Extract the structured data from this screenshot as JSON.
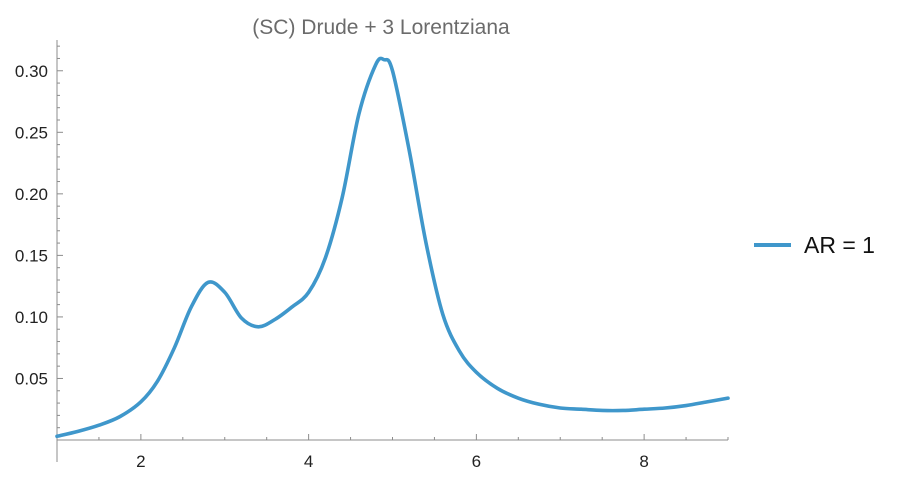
{
  "chart_data": {
    "type": "line",
    "title": "(SC) Drude + 3 Lorentziana",
    "xlabel": "",
    "ylabel": "",
    "xlim": [
      1,
      9
    ],
    "ylim": [
      0,
      0.325
    ],
    "x_ticks": [
      2,
      4,
      6,
      8
    ],
    "x_tick_labels": [
      "2",
      "4",
      "6",
      "8"
    ],
    "y_ticks": [
      0.05,
      0.1,
      0.15,
      0.2,
      0.25,
      0.3
    ],
    "y_tick_labels": [
      "0.05",
      "0.10",
      "0.15",
      "0.20",
      "0.25",
      "0.30"
    ],
    "grid": false,
    "legend": "right",
    "series": [
      {
        "name": "AR = 1",
        "color": "#3f97cb",
        "x": [
          1.0,
          1.25,
          1.5,
          1.75,
          2.0,
          2.2,
          2.4,
          2.6,
          2.8,
          3.0,
          3.2,
          3.4,
          3.6,
          3.8,
          4.0,
          4.2,
          4.4,
          4.6,
          4.8,
          4.9,
          5.0,
          5.2,
          5.4,
          5.6,
          5.8,
          6.0,
          6.25,
          6.5,
          6.75,
          7.0,
          7.25,
          7.5,
          7.75,
          8.0,
          8.25,
          8.5,
          8.75,
          9.0
        ],
        "y": [
          0.003,
          0.007,
          0.012,
          0.019,
          0.031,
          0.048,
          0.075,
          0.108,
          0.128,
          0.12,
          0.099,
          0.092,
          0.098,
          0.108,
          0.12,
          0.148,
          0.197,
          0.265,
          0.305,
          0.309,
          0.3,
          0.235,
          0.16,
          0.102,
          0.072,
          0.055,
          0.042,
          0.034,
          0.029,
          0.026,
          0.025,
          0.024,
          0.024,
          0.025,
          0.026,
          0.028,
          0.031,
          0.034
        ]
      }
    ]
  }
}
